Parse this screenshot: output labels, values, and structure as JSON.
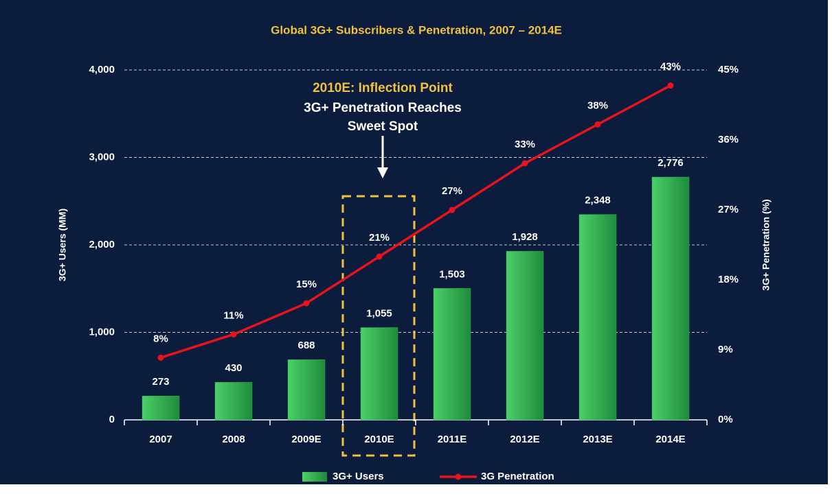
{
  "chart_data": {
    "type": "bar",
    "title": "Global 3G+ Subscribers & Penetration, 2007 – 2014E",
    "categories": [
      "2007",
      "2008",
      "2009E",
      "2010E",
      "2011E",
      "2012E",
      "2013E",
      "2014E"
    ],
    "series": [
      {
        "name": "3G+ Users",
        "color": "#2db04f",
        "values": [
          273,
          430,
          688,
          1055,
          1503,
          1928,
          2348,
          2776
        ],
        "value_labels": [
          "273",
          "430",
          "688",
          "1,055",
          "1,503",
          "1,928",
          "2,348",
          "2,776"
        ]
      },
      {
        "name": "3G Penetration",
        "type": "line",
        "axis": "y2",
        "color": "#e8141c",
        "values": [
          8,
          11,
          15,
          21,
          27,
          33,
          38,
          43
        ],
        "value_labels": [
          "8%",
          "11%",
          "15%",
          "21%",
          "27%",
          "33%",
          "38%",
          "43%"
        ]
      }
    ],
    "ylabel": "3G+ Users (MM)",
    "y2label": "3G+ Penetration (%)",
    "ylim": [
      0,
      4000
    ],
    "yticks": [
      0,
      {
        "value": 1000,
        "label": "1,000"
      },
      {
        "value": 2000,
        "label": "2,000"
      },
      {
        "value": 3000,
        "label": "3,000"
      },
      {
        "value": 4000,
        "label": "4,000"
      }
    ],
    "y2lim": [
      0,
      45
    ],
    "y2ticks": [
      {
        "value": 0,
        "label": "0%"
      },
      {
        "value": 9,
        "label": "9%"
      },
      {
        "value": 18,
        "label": "18%"
      },
      {
        "value": 27,
        "label": "27%"
      },
      {
        "value": 36,
        "label": "36%"
      },
      {
        "value": 45,
        "label": "45%"
      }
    ],
    "grid": true,
    "annotations": [
      "2010E: Inflection Point",
      "3G+ Penetration Reaches",
      "Sweet Spot"
    ]
  }
}
